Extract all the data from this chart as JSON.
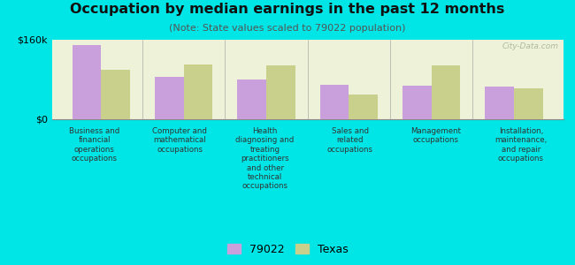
{
  "title": "Occupation by median earnings in the past 12 months",
  "subtitle": "(Note: State values scaled to 79022 population)",
  "categories": [
    "Business and\nfinancial\noperations\noccupations",
    "Computer and\nmathematical\noccupations",
    "Health\ndiagnosing and\ntreating\npractitioners\nand other\ntechnical\noccupations",
    "Sales and\nrelated\noccupations",
    "Management\noccupations",
    "Installation,\nmaintenance,\nand repair\noccupations"
  ],
  "values_79022": [
    150000,
    85000,
    80000,
    70000,
    68000,
    65000
  ],
  "values_texas": [
    100000,
    110000,
    108000,
    50000,
    108000,
    63000
  ],
  "color_79022": "#c9a0dc",
  "color_texas": "#c8d08c",
  "ylim": [
    0,
    160000
  ],
  "ytick_labels": [
    "$0",
    "$160k"
  ],
  "legend_labels": [
    "79022",
    "Texas"
  ],
  "chart_bg": "#eef2d8",
  "outer_background": "#00e5e5",
  "watermark": "City-Data.com"
}
